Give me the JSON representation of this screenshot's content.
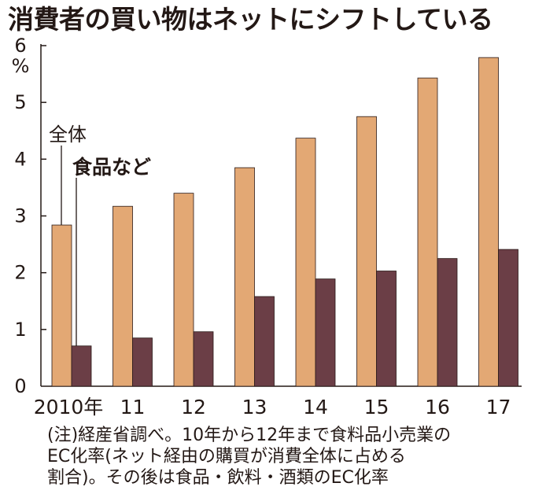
{
  "title": "消費者の買い物はネットにシフトしている",
  "colors": {
    "total": "#E3A874",
    "food": "#6B3E46",
    "outline": "#2A1A18"
  },
  "chart_data": {
    "type": "bar",
    "title": "消費者の買い物はネットにシフトしている",
    "unit": "%",
    "categories": [
      "2010年",
      "11",
      "12",
      "13",
      "14",
      "15",
      "16",
      "17"
    ],
    "series": [
      {
        "name": "全体",
        "values": [
          2.84,
          3.17,
          3.4,
          3.85,
          4.37,
          4.75,
          5.43,
          5.79
        ]
      },
      {
        "name": "食品など",
        "values": [
          0.71,
          0.85,
          0.96,
          1.58,
          1.89,
          2.03,
          2.25,
          2.41
        ]
      }
    ],
    "ylim": [
      0,
      6
    ],
    "yticks": [
      "0",
      "1",
      "2",
      "3",
      "4",
      "5",
      "6"
    ],
    "grid": false,
    "legend": "left, labels on first bars"
  },
  "note": [
    "(注)経産省調べ。10年から12年まで食料品小売業の",
    "EC化率(ネット経由の購買が消費全体に占める",
    "割合)。その後は食品・飲料・酒類のEC化率"
  ]
}
